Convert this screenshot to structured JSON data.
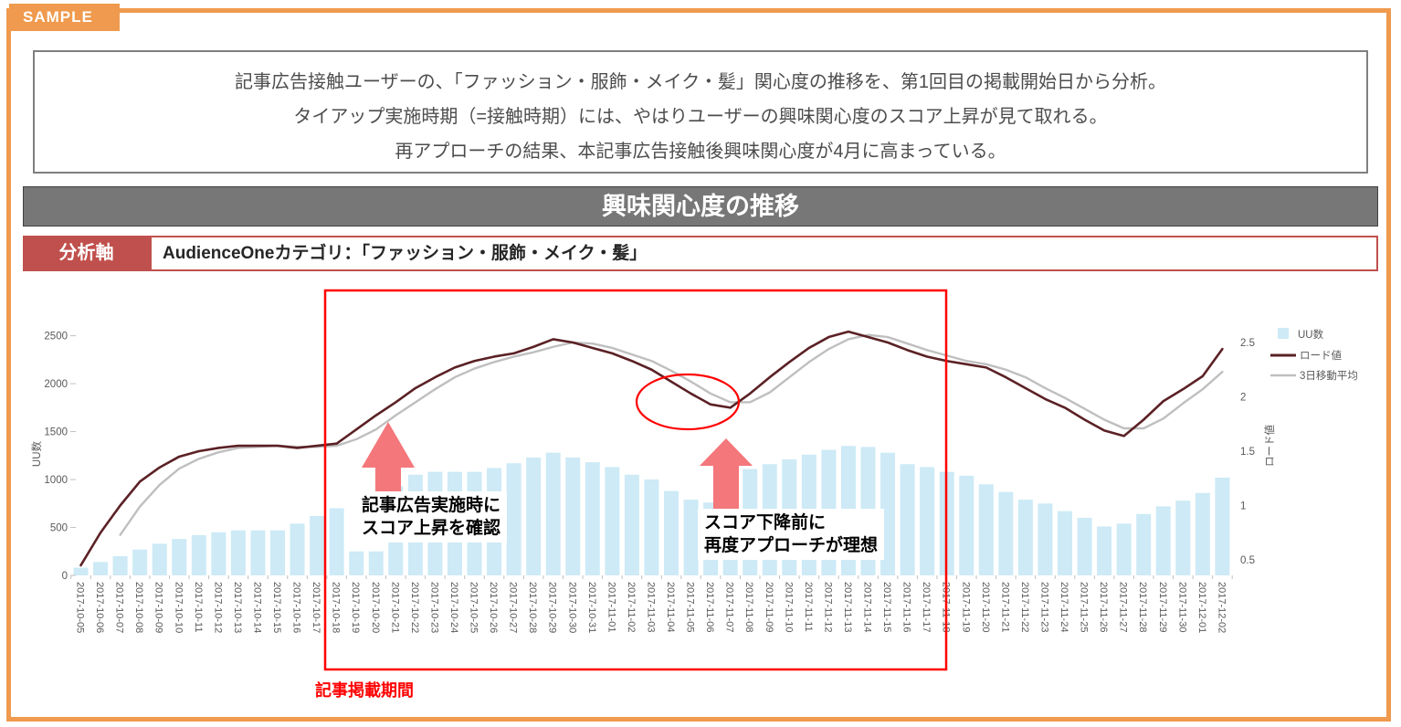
{
  "badge": {
    "label": "SAMPLE"
  },
  "summary": {
    "lines": [
      "記事広告接触ユーザーの、「ファッション・服飾・メイク・髪」関心度の推移を、第1回目の掲載開始日から分析。",
      "タイアップ実施時期（=接触時期）には、やはりユーザーの興味関心度のスコア上昇が見て取れる。",
      "再アプローチの結果、本記事広告接触後興味関心度が4月に高まっている。"
    ]
  },
  "title_bar": {
    "title": "興味関心度の推移"
  },
  "analysis_axis": {
    "label": "分析軸",
    "value": "AudienceOneカテゴリ：「ファッション・服飾・メイク・髪」"
  },
  "annotations": {
    "period_label": "記事掲載期間",
    "period_start": "2017-10-18",
    "period_end": "2017-11-17",
    "arrow1_text": [
      "記事広告実施時に",
      "スコア上昇を確認"
    ],
    "arrow2_text": [
      "スコア下降前に",
      "再度アプローチが理想"
    ]
  },
  "colors": {
    "accent_orange": "#EF9A4E",
    "bar_fill": "#CDEAF6",
    "load_line": "#5B2125",
    "avg_line": "#BFBFBF",
    "annotation_red": "#FF0000",
    "arrow_pink": "#F4777B",
    "analysis_red": "#C0504D",
    "title_bar_gray": "#777777",
    "tick_text_gray": "#595959"
  },
  "chart_data": {
    "type": "bar",
    "subtype": "combo-bar-line",
    "title": "興味関心度の推移",
    "grid": false,
    "legend_position": "top-right",
    "categories": [
      "2017-10-05",
      "2017-10-06",
      "2017-10-07",
      "2017-10-08",
      "2017-10-09",
      "2017-10-10",
      "2017-10-11",
      "2017-10-12",
      "2017-10-13",
      "2017-10-14",
      "2017-10-15",
      "2017-10-16",
      "2017-10-17",
      "2017-10-18",
      "2017-10-19",
      "2017-10-20",
      "2017-10-21",
      "2017-10-22",
      "2017-10-23",
      "2017-10-24",
      "2017-10-25",
      "2017-10-26",
      "2017-10-27",
      "2017-10-28",
      "2017-10-29",
      "2017-10-30",
      "2017-10-31",
      "2017-11-01",
      "2017-11-02",
      "2017-11-03",
      "2017-11-04",
      "2017-11-05",
      "2017-11-06",
      "2017-11-07",
      "2017-11-08",
      "2017-11-09",
      "2017-11-10",
      "2017-11-11",
      "2017-11-12",
      "2017-11-13",
      "2017-11-14",
      "2017-11-15",
      "2017-11-16",
      "2017-11-17",
      "2017-11-18",
      "2017-11-19",
      "2017-11-20",
      "2017-11-21",
      "2017-11-22",
      "2017-11-23",
      "2017-11-24",
      "2017-11-25",
      "2017-11-26",
      "2017-11-27",
      "2017-11-28",
      "2017-11-29",
      "2017-11-30",
      "2017-12-01",
      "2017-12-02"
    ],
    "series": [
      {
        "name": "UU数",
        "type": "bar",
        "axis": "left",
        "color": "#CDEAF6",
        "values": [
          80,
          140,
          200,
          270,
          330,
          380,
          420,
          450,
          470,
          470,
          470,
          540,
          620,
          700,
          250,
          250,
          930,
          1050,
          1080,
          1080,
          1080,
          1120,
          1170,
          1230,
          1280,
          1230,
          1180,
          1130,
          1050,
          1000,
          880,
          790,
          760,
          950,
          1110,
          1160,
          1210,
          1260,
          1310,
          1350,
          1340,
          1280,
          1160,
          1130,
          1080,
          1040,
          950,
          870,
          790,
          750,
          670,
          600,
          510,
          540,
          640,
          720,
          780,
          860,
          1020
        ]
      },
      {
        "name": "ロード値",
        "type": "line",
        "axis": "right",
        "color": "#5B2125",
        "values": [
          0.45,
          0.75,
          1.0,
          1.22,
          1.35,
          1.45,
          1.5,
          1.53,
          1.55,
          1.55,
          1.55,
          1.53,
          1.55,
          1.57,
          1.7,
          1.83,
          1.95,
          2.08,
          2.18,
          2.27,
          2.33,
          2.37,
          2.4,
          2.46,
          2.53,
          2.5,
          2.45,
          2.4,
          2.33,
          2.25,
          2.14,
          2.03,
          1.93,
          1.9,
          2.03,
          2.18,
          2.32,
          2.45,
          2.55,
          2.6,
          2.55,
          2.5,
          2.43,
          2.37,
          2.33,
          2.3,
          2.27,
          2.18,
          2.08,
          1.98,
          1.9,
          1.79,
          1.69,
          1.64,
          1.79,
          1.96,
          2.07,
          2.19,
          2.44
        ]
      },
      {
        "name": "3日移動平均",
        "type": "line",
        "axis": "right",
        "color": "#BFBFBF",
        "values": [
          null,
          null,
          0.73,
          0.99,
          1.19,
          1.34,
          1.43,
          1.49,
          1.53,
          1.54,
          1.55,
          1.54,
          1.54,
          1.55,
          1.61,
          1.7,
          1.83,
          1.95,
          2.07,
          2.18,
          2.26,
          2.32,
          2.37,
          2.41,
          2.46,
          2.5,
          2.49,
          2.45,
          2.39,
          2.33,
          2.24,
          2.14,
          2.03,
          1.95,
          1.95,
          2.04,
          2.18,
          2.32,
          2.44,
          2.53,
          2.57,
          2.55,
          2.49,
          2.43,
          2.38,
          2.33,
          2.3,
          2.25,
          2.18,
          2.08,
          1.99,
          1.89,
          1.79,
          1.71,
          1.71,
          1.8,
          1.94,
          2.07,
          2.23
        ]
      }
    ],
    "left_axis": {
      "title": "UU数",
      "ticks": [
        0,
        500,
        1000,
        1500,
        2000,
        2500
      ],
      "range": [
        0,
        2500
      ]
    },
    "right_axis": {
      "title": "ロード値",
      "ticks": [
        0.5,
        1,
        1.5,
        2,
        2.5
      ],
      "range": [
        0.5,
        2.5
      ]
    }
  }
}
